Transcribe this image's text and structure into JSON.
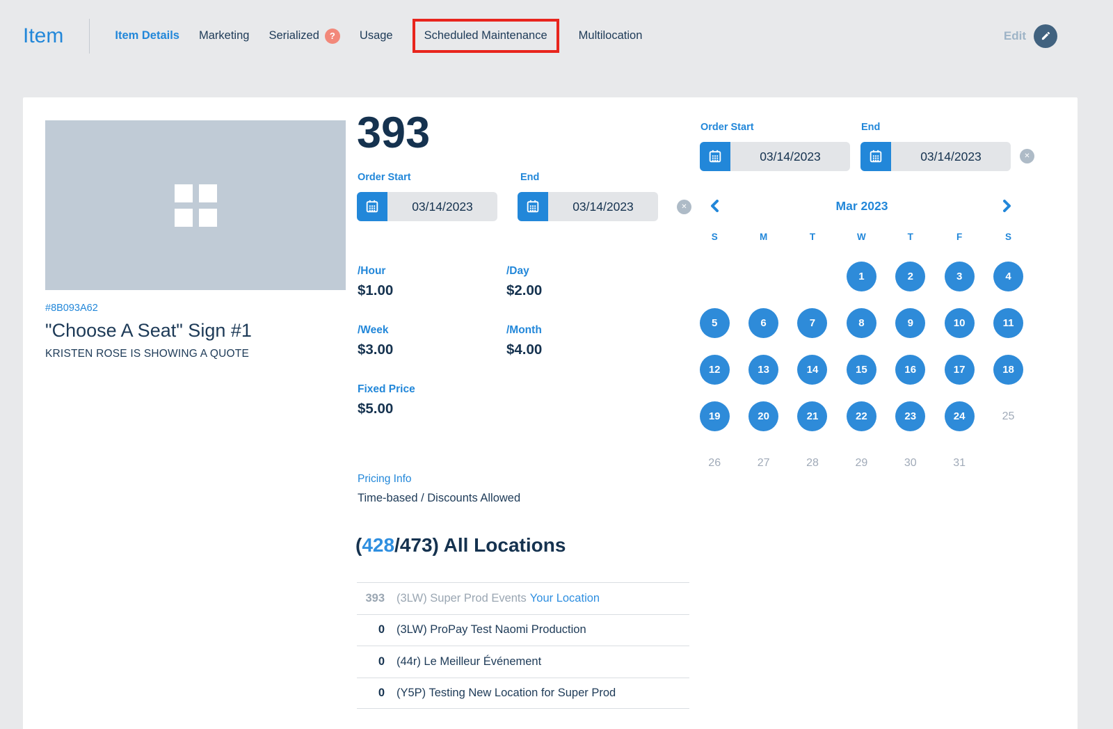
{
  "topbar": {
    "brand": "Item",
    "tabs": [
      {
        "label": "Item Details",
        "active": true
      },
      {
        "label": "Marketing"
      },
      {
        "label": "Serialized",
        "badge": "?"
      },
      {
        "label": "Usage"
      },
      {
        "label": "Scheduled Maintenance",
        "highlighted": true
      },
      {
        "label": "Multilocation"
      }
    ],
    "edit_label": "Edit"
  },
  "item": {
    "sku": "#8B093A62",
    "title": "\"Choose A Seat\" Sign #1",
    "subtitle": "KRISTEN ROSE IS SHOWING A QUOTE",
    "quantity": "393"
  },
  "dates_main": {
    "start_label": "Order Start",
    "end_label": "End",
    "start_value": "03/14/2023",
    "end_value": "03/14/2023",
    "clear_glyph": "✕"
  },
  "dates_panel": {
    "start_label": "Order Start",
    "end_label": "End",
    "start_value": "03/14/2023",
    "end_value": "03/14/2023",
    "clear_glyph": "✕"
  },
  "pricing": {
    "items": [
      {
        "label": "/Hour",
        "value": "$1.00"
      },
      {
        "label": "/Day",
        "value": "$2.00"
      },
      {
        "label": "/Week",
        "value": "$3.00"
      },
      {
        "label": "/Month",
        "value": "$4.00"
      },
      {
        "label": "Fixed Price",
        "value": "$5.00"
      }
    ],
    "info_link": "Pricing Info",
    "info_text": "Time-based / Discounts Allowed"
  },
  "locations": {
    "heading_prefix": "(",
    "heading_available": "428",
    "heading_suffix": "/473) All Locations",
    "rows": [
      {
        "count": "393",
        "name": "(3LW) Super Prod Events",
        "link": "Your Location",
        "muted": true
      },
      {
        "count": "0",
        "name": "(3LW) ProPay Test Naomi Production"
      },
      {
        "count": "0",
        "name": "(44r) Le Meilleur Événement"
      },
      {
        "count": "0",
        "name": "(Y5P) Testing New Location for Super Prod"
      }
    ]
  },
  "calendar": {
    "title": "Mar 2023",
    "weekdays": [
      "S",
      "M",
      "T",
      "W",
      "T",
      "F",
      "S"
    ],
    "weeks": [
      [
        null,
        null,
        null,
        {
          "day": "1",
          "state": "active"
        },
        {
          "day": "2",
          "state": "active"
        },
        {
          "day": "3",
          "state": "active"
        },
        {
          "day": "4",
          "state": "active"
        }
      ],
      [
        {
          "day": "5",
          "state": "active"
        },
        {
          "day": "6",
          "state": "active"
        },
        {
          "day": "7",
          "state": "active"
        },
        {
          "day": "8",
          "state": "active"
        },
        {
          "day": "9",
          "state": "active"
        },
        {
          "day": "10",
          "state": "active"
        },
        {
          "day": "11",
          "state": "active"
        }
      ],
      [
        {
          "day": "12",
          "state": "active"
        },
        {
          "day": "13",
          "state": "active"
        },
        {
          "day": "14",
          "state": "active"
        },
        {
          "day": "15",
          "state": "active"
        },
        {
          "day": "16",
          "state": "active"
        },
        {
          "day": "17",
          "state": "active"
        },
        {
          "day": "18",
          "state": "active"
        }
      ],
      [
        {
          "day": "19",
          "state": "active"
        },
        {
          "day": "20",
          "state": "active"
        },
        {
          "day": "21",
          "state": "active"
        },
        {
          "day": "22",
          "state": "active"
        },
        {
          "day": "23",
          "state": "active"
        },
        {
          "day": "24",
          "state": "active"
        },
        {
          "day": "25",
          "state": "muted"
        }
      ],
      [
        {
          "day": "26",
          "state": "muted"
        },
        {
          "day": "27",
          "state": "muted"
        },
        {
          "day": "28",
          "state": "muted"
        },
        {
          "day": "29",
          "state": "muted"
        },
        {
          "day": "30",
          "state": "muted"
        },
        {
          "day": "31",
          "state": "muted"
        },
        null
      ]
    ]
  },
  "colors": {
    "accent_blue": "#2287d9",
    "dark_navy": "#15324f",
    "highlight_red": "#e8251d",
    "badge_salmon": "#f2887a",
    "muted_gray": "#9aa6b2",
    "placeholder_gray": "#c0cbd6"
  }
}
